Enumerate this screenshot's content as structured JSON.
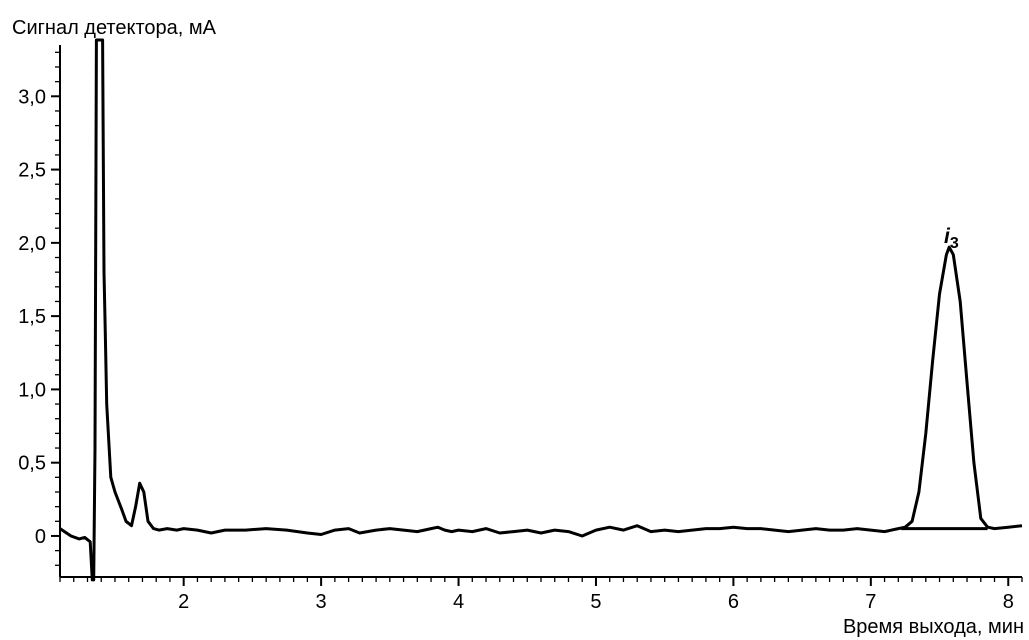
{
  "chart_data": {
    "type": "line",
    "title": "",
    "ylabel": "Сигнал детектора, мА",
    "xlabel": "Время выхода, мин",
    "xlim": [
      1.1,
      8.1
    ],
    "ylim": [
      -0.28,
      3.35
    ],
    "x_ticks": [
      2,
      3,
      4,
      5,
      6,
      7,
      8
    ],
    "x_tick_labels": [
      "2",
      "3",
      "4",
      "5",
      "6",
      "7",
      "8"
    ],
    "y_ticks": [
      0,
      0.5,
      1.0,
      1.5,
      2.0,
      2.5,
      3.0
    ],
    "y_tick_labels": [
      "0",
      "0,5",
      "1,0",
      "1,5",
      "2,0",
      "2,5",
      "3,0"
    ],
    "grid": false,
    "annotations": [
      {
        "text": "i",
        "subscript": "3",
        "x": 7.57,
        "y": 2.02
      }
    ],
    "series": [
      {
        "x": [
          1.1,
          1.18,
          1.24,
          1.28,
          1.32,
          1.335,
          1.345,
          1.355,
          1.365,
          1.375,
          1.385,
          1.4,
          1.41,
          1.42,
          1.43,
          1.44,
          1.47,
          1.5,
          1.55,
          1.58,
          1.62,
          1.65,
          1.68,
          1.71,
          1.74,
          1.78,
          1.82,
          1.88,
          1.95,
          2.0,
          2.1,
          2.2,
          2.3,
          2.45,
          2.6,
          2.75,
          2.9,
          3.0,
          3.1,
          3.2,
          3.28,
          3.4,
          3.5,
          3.6,
          3.7,
          3.8,
          3.85,
          3.9,
          3.95,
          4.0,
          4.1,
          4.2,
          4.3,
          4.4,
          4.5,
          4.6,
          4.7,
          4.8,
          4.9,
          5.0,
          5.1,
          5.2,
          5.3,
          5.4,
          5.5,
          5.6,
          5.7,
          5.8,
          5.9,
          6.0,
          6.1,
          6.2,
          6.3,
          6.4,
          6.5,
          6.6,
          6.7,
          6.8,
          6.9,
          7.0,
          7.1,
          7.2,
          7.25,
          7.3,
          7.35,
          7.4,
          7.45,
          7.5,
          7.55,
          7.57,
          7.6,
          7.65,
          7.7,
          7.75,
          7.8,
          7.85,
          7.9,
          8.0,
          8.1
        ],
        "y": [
          0.05,
          0.0,
          -0.02,
          -0.01,
          -0.04,
          -0.3,
          -0.3,
          0.6,
          3.4,
          3.4,
          3.4,
          3.4,
          3.4,
          1.8,
          1.35,
          0.9,
          0.4,
          0.3,
          0.18,
          0.1,
          0.07,
          0.2,
          0.36,
          0.3,
          0.1,
          0.05,
          0.04,
          0.05,
          0.04,
          0.05,
          0.04,
          0.02,
          0.04,
          0.04,
          0.05,
          0.04,
          0.02,
          0.01,
          0.04,
          0.05,
          0.02,
          0.04,
          0.05,
          0.04,
          0.03,
          0.05,
          0.06,
          0.04,
          0.03,
          0.04,
          0.03,
          0.05,
          0.02,
          0.03,
          0.04,
          0.02,
          0.04,
          0.03,
          0.0,
          0.04,
          0.06,
          0.04,
          0.07,
          0.03,
          0.04,
          0.03,
          0.04,
          0.05,
          0.05,
          0.06,
          0.05,
          0.05,
          0.04,
          0.03,
          0.04,
          0.05,
          0.04,
          0.04,
          0.05,
          0.04,
          0.03,
          0.05,
          0.06,
          0.1,
          0.3,
          0.7,
          1.2,
          1.65,
          1.92,
          1.97,
          1.92,
          1.6,
          1.05,
          0.5,
          0.12,
          0.06,
          0.05,
          0.06,
          0.07
        ]
      },
      {
        "x": [
          7.22,
          7.85
        ],
        "y": [
          0.05,
          0.05
        ]
      }
    ]
  }
}
